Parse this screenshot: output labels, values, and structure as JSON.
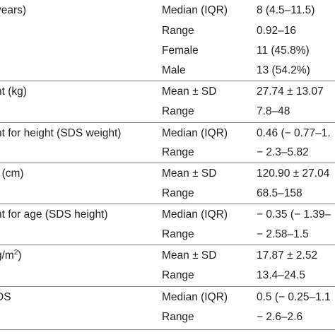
{
  "table": {
    "rows": [
      {
        "variable": "years)",
        "stat": "Median (IQR)",
        "value": "8 (4.5–11.5)"
      },
      {
        "variable": "",
        "stat": "Range",
        "value": "0.92–16"
      },
      {
        "variable": "",
        "stat": "Female",
        "value": "11 (45.8%)"
      },
      {
        "variable": "",
        "stat": "Male",
        "value": "13 (54.2%)"
      },
      {
        "variable": "nt (kg)",
        "stat": "Mean ± SD",
        "value": "27.74 ± 13.07"
      },
      {
        "variable": "",
        "stat": "Range",
        "value": "7.8–48"
      },
      {
        "variable": "nt for height (SDS weight)",
        "stat": "Median (IQR)",
        "value": "0.46 (− 0.77–1."
      },
      {
        "variable": "",
        "stat": "Range",
        "value": "− 2.3–5.82"
      },
      {
        "variable": "t (cm)",
        "stat": "Mean ± SD",
        "value": "120.90 ± 27.04"
      },
      {
        "variable": "",
        "stat": "Range",
        "value": "68.5–158"
      },
      {
        "variable": "nt for age (SDS height)",
        "stat": "Median (IQR)",
        "value": "− 0.35 (− 1.39–"
      },
      {
        "variable": "",
        "stat": "Range",
        "value": "− 2.58–1.5"
      },
      {
        "variable": "g/m",
        "variable_sup": "2",
        "variable_suffix": ")",
        "stat": "Mean ± SD",
        "value": "17.87 ± 2.52"
      },
      {
        "variable": "",
        "stat": "Range",
        "value": "13.4–24.5"
      },
      {
        "variable": "DS",
        "stat": "Median (IQR)",
        "value": "0.5 (− 0.25–1.1"
      },
      {
        "variable": "",
        "stat": "Range",
        "value": "− 2.6–2.6"
      }
    ]
  }
}
